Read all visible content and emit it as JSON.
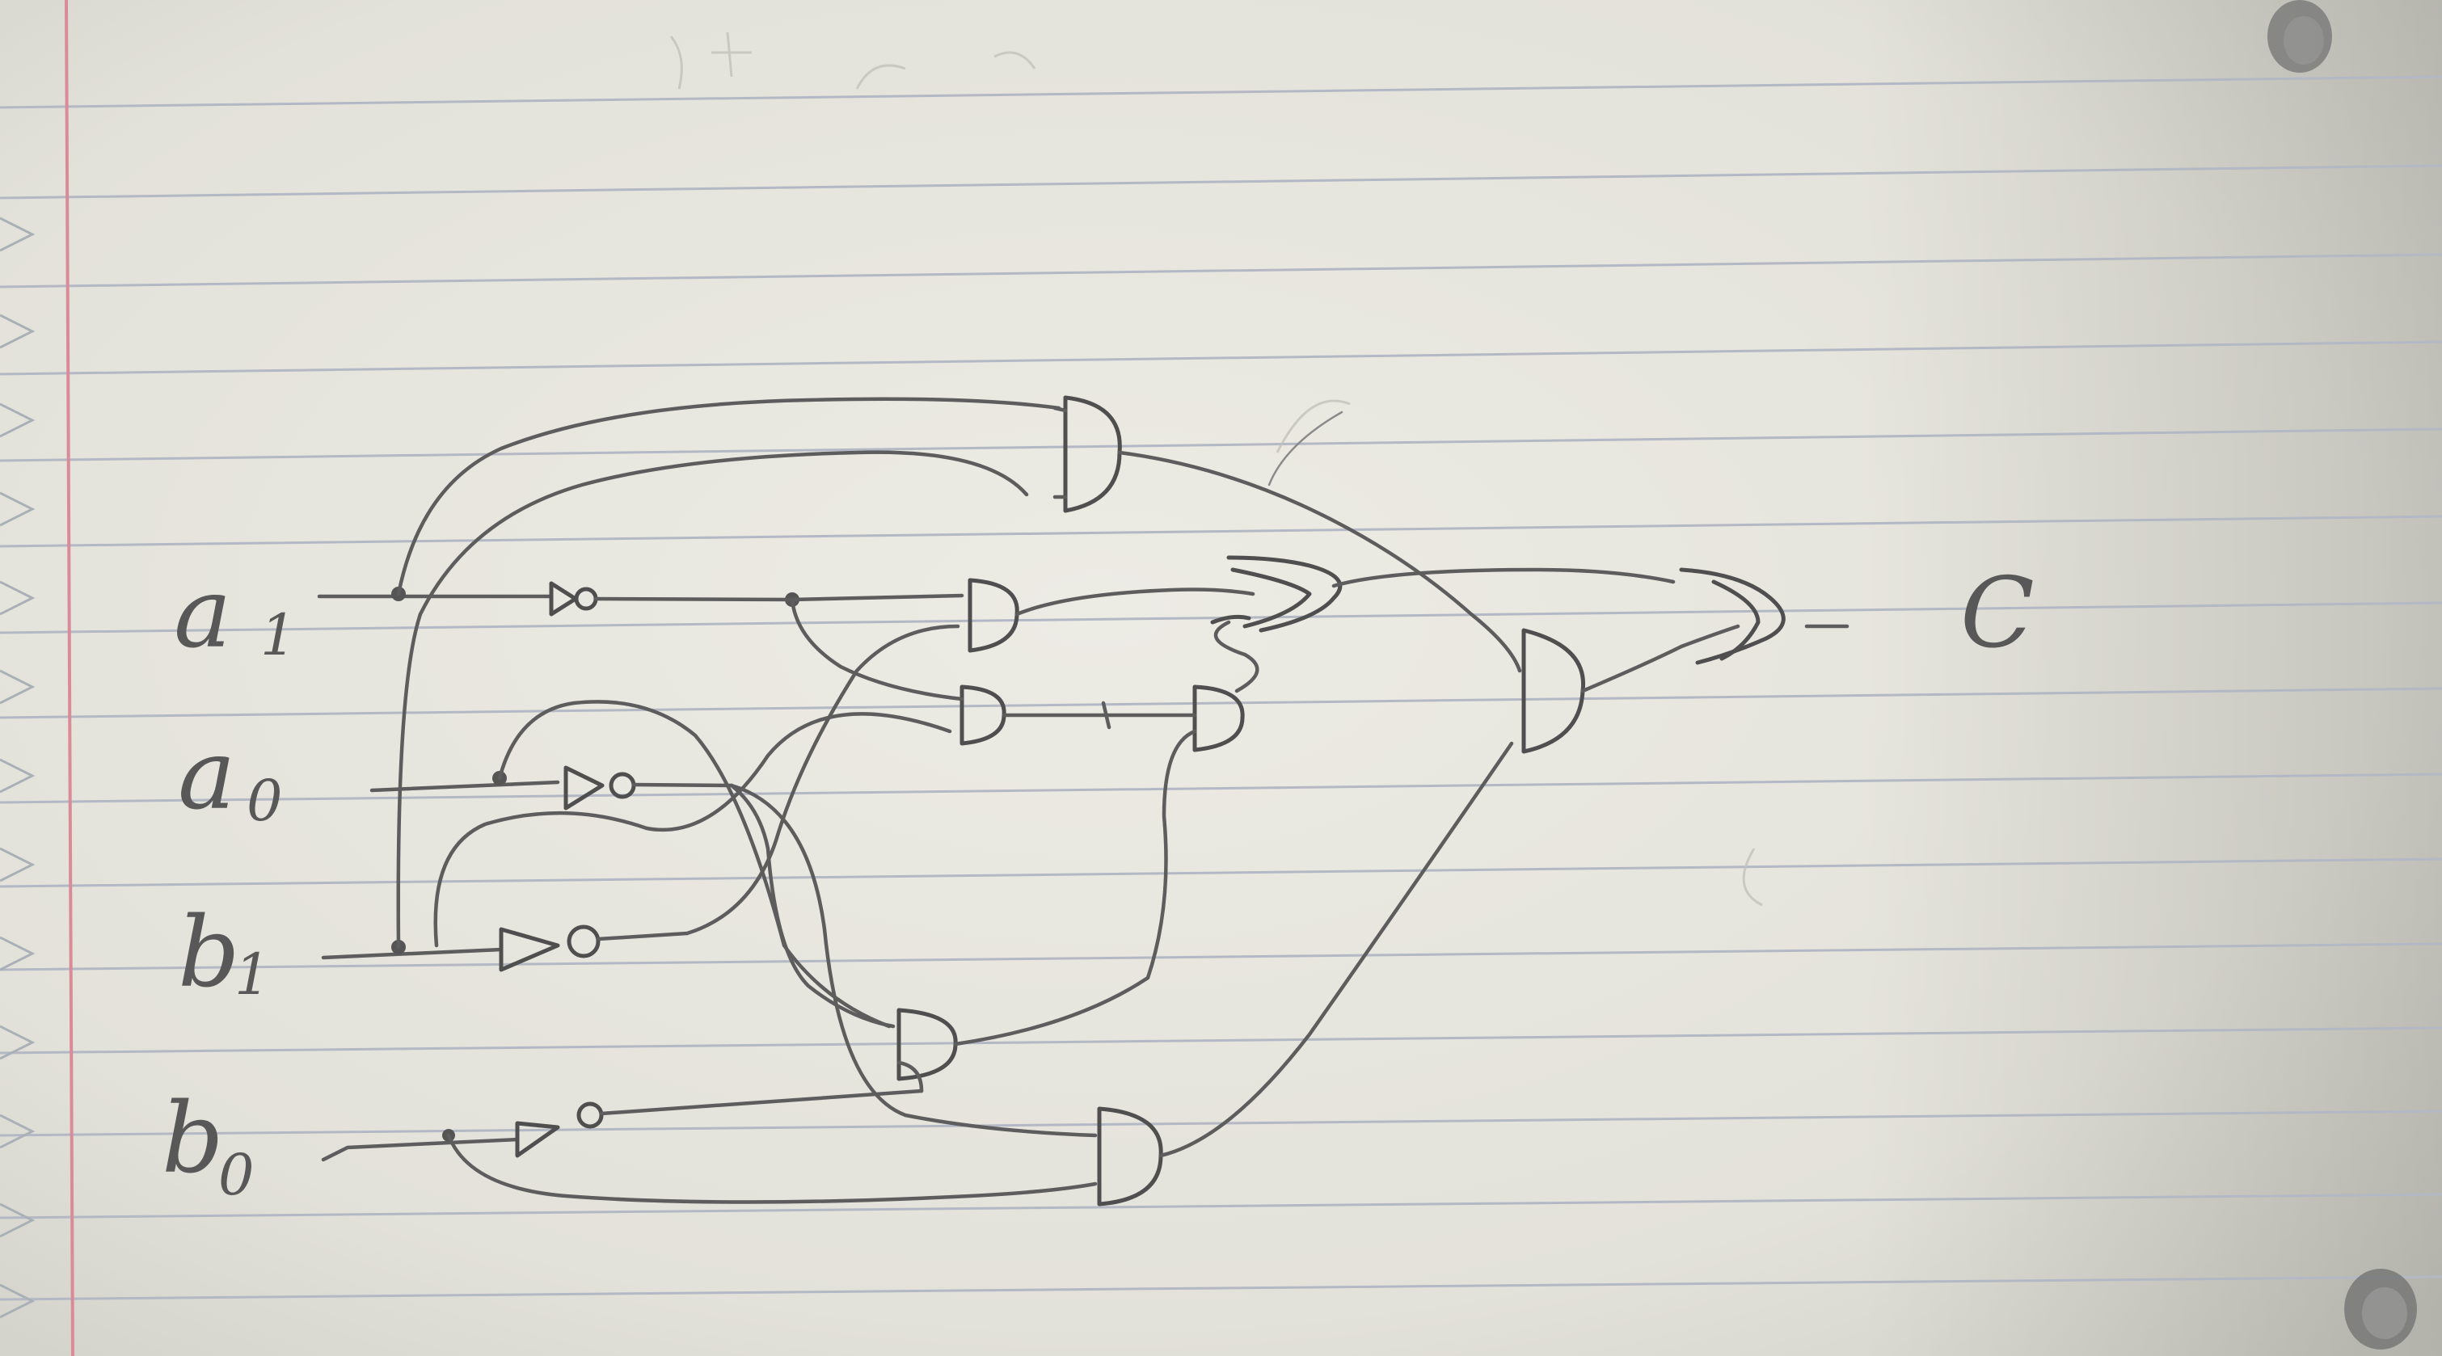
{
  "diagram": {
    "inputs": [
      {
        "name": "a",
        "subscript": "1"
      },
      {
        "name": "a",
        "subscript": "0"
      },
      {
        "name": "b",
        "subscript": "1"
      },
      {
        "name": "b",
        "subscript": "0"
      }
    ],
    "output": "C"
  }
}
